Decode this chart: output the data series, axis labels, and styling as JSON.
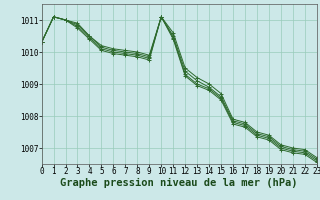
{
  "background_color": "#cce8e8",
  "grid_color": "#99ccbb",
  "line_color": "#2d6a2d",
  "marker_color": "#2d6a2d",
  "xlabel": "Graphe pression niveau de la mer (hPa)",
  "xlabel_fontsize": 7.5,
  "tick_fontsize": 5.5,
  "xlim": [
    0,
    23
  ],
  "ylim": [
    1006.5,
    1011.5
  ],
  "yticks": [
    1007,
    1008,
    1009,
    1010,
    1011
  ],
  "xticks": [
    0,
    1,
    2,
    3,
    4,
    5,
    6,
    7,
    8,
    9,
    10,
    11,
    12,
    13,
    14,
    15,
    16,
    17,
    18,
    19,
    20,
    21,
    22,
    23
  ],
  "series": [
    [
      1010.3,
      1011.1,
      1011.0,
      1010.9,
      1010.5,
      1010.2,
      1010.1,
      1010.05,
      1010.0,
      1009.9,
      1011.1,
      1010.6,
      1009.5,
      1009.2,
      1009.0,
      1008.7,
      1007.9,
      1007.8,
      1007.5,
      1007.4,
      1007.1,
      1007.0,
      1006.95,
      1006.7
    ],
    [
      1010.3,
      1011.1,
      1011.0,
      1010.85,
      1010.5,
      1010.15,
      1010.05,
      1010.0,
      1009.95,
      1009.85,
      1011.1,
      1010.5,
      1009.4,
      1009.1,
      1008.9,
      1008.6,
      1007.85,
      1007.75,
      1007.45,
      1007.35,
      1007.05,
      1006.95,
      1006.9,
      1006.65
    ],
    [
      1010.3,
      1011.1,
      1011.0,
      1010.8,
      1010.45,
      1010.1,
      1010.0,
      1009.95,
      1009.9,
      1009.8,
      1011.1,
      1010.45,
      1009.3,
      1009.0,
      1008.85,
      1008.55,
      1007.8,
      1007.7,
      1007.4,
      1007.3,
      1007.0,
      1006.9,
      1006.85,
      1006.6
    ],
    [
      1010.3,
      1011.1,
      1011.0,
      1010.75,
      1010.4,
      1010.05,
      1009.95,
      1009.9,
      1009.85,
      1009.75,
      1011.1,
      1010.4,
      1009.25,
      1008.95,
      1008.8,
      1008.5,
      1007.75,
      1007.65,
      1007.35,
      1007.25,
      1006.95,
      1006.85,
      1006.8,
      1006.55
    ]
  ]
}
